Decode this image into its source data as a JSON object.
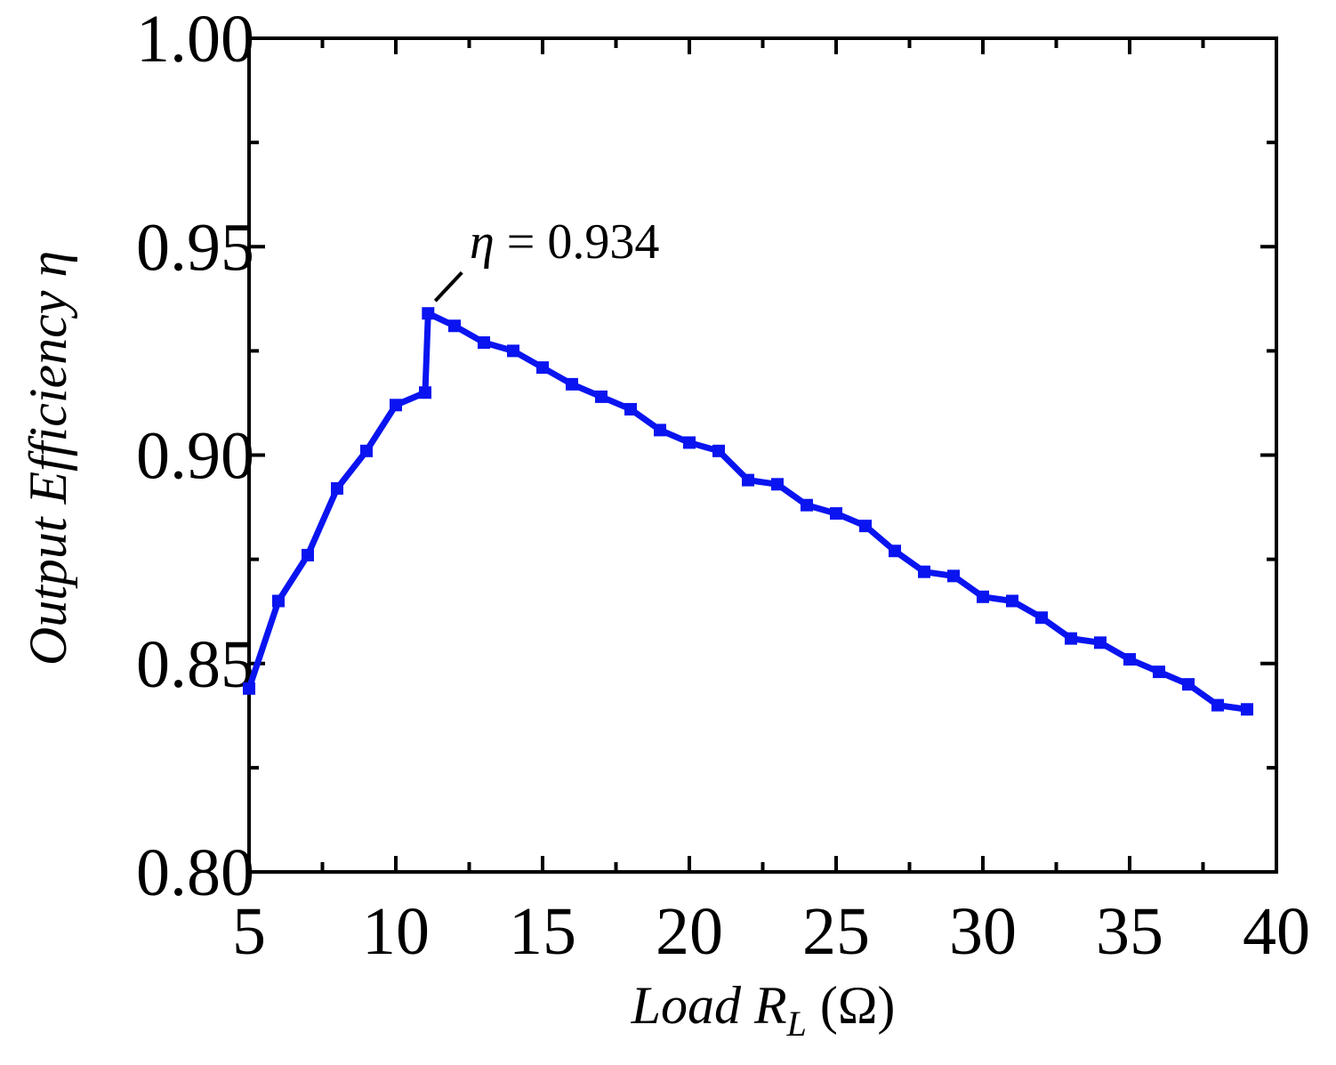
{
  "chart_data": {
    "type": "line",
    "xlabel_main": "Load ",
    "xlabel_var": "R",
    "xlabel_sub": "L",
    "xlabel_unit": " (Ω)",
    "ylabel_main": "Output Efficiency ",
    "ylabel_var": "η",
    "xlim": [
      5,
      40
    ],
    "ylim": [
      0.8,
      1.0
    ],
    "x_ticks": [
      5,
      10,
      15,
      20,
      25,
      30,
      35,
      40
    ],
    "x_tick_labels": [
      "5",
      "10",
      "15",
      "20",
      "25",
      "30",
      "35",
      "40"
    ],
    "y_ticks": [
      0.8,
      0.85,
      0.9,
      0.95,
      1.0
    ],
    "y_tick_labels": [
      "0.80",
      "0.85",
      "0.90",
      "0.95",
      "1.00"
    ],
    "grid": false,
    "series": [
      {
        "color": "#0a14f0",
        "marker": "square",
        "x": [
          5,
          6,
          7,
          8,
          9,
          10,
          11,
          11.1,
          12,
          13,
          14,
          15,
          16,
          17,
          18,
          19,
          20,
          21,
          22,
          23,
          24,
          25,
          26,
          27,
          28,
          29,
          30,
          31,
          32,
          33,
          34,
          35,
          36,
          37,
          38,
          39
        ],
        "y": [
          0.844,
          0.865,
          0.876,
          0.892,
          0.901,
          0.912,
          0.915,
          0.934,
          0.931,
          0.927,
          0.925,
          0.921,
          0.917,
          0.914,
          0.911,
          0.906,
          0.903,
          0.901,
          0.894,
          0.893,
          0.888,
          0.886,
          0.883,
          0.877,
          0.872,
          0.871,
          0.866,
          0.865,
          0.861,
          0.856,
          0.855,
          0.851,
          0.848,
          0.845,
          0.84,
          0.839
        ]
      }
    ],
    "annotation": {
      "var": "η",
      "text": " = 0.934",
      "x": 11.1,
      "y": 0.934
    }
  }
}
